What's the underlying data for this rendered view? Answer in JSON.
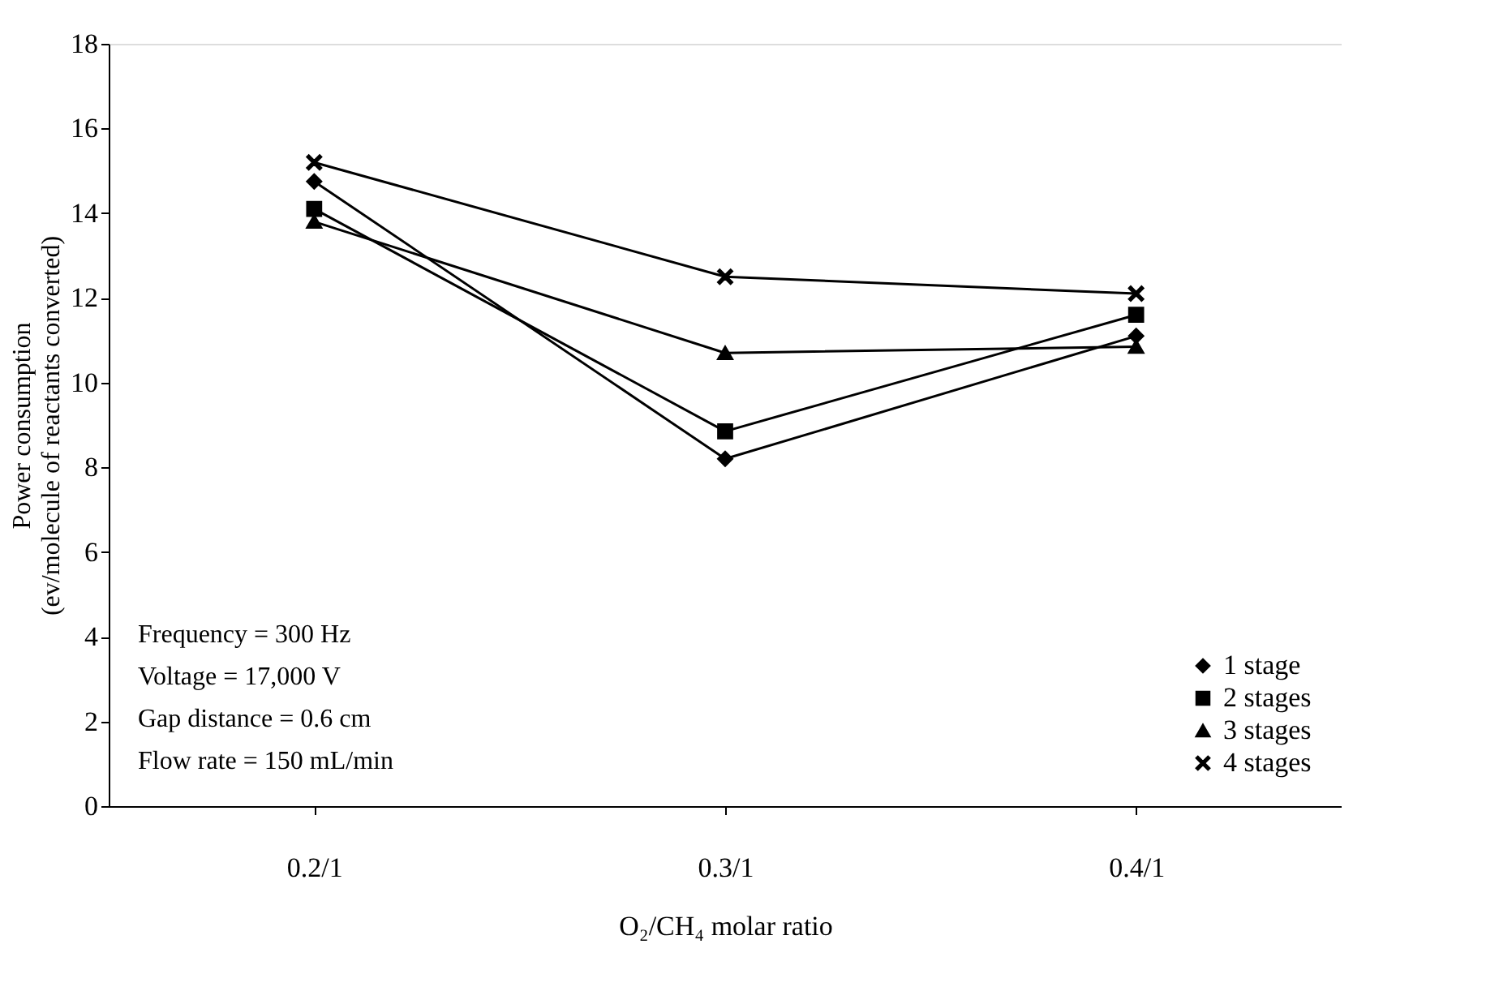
{
  "chart_data": {
    "type": "line",
    "xlabel": "O₂/CH₄ molar ratio",
    "ylabel": "Power consumption\n(ev/molecule of reactants converted)",
    "categories": [
      "0.2/1",
      "0.3/1",
      "0.4/1"
    ],
    "series": [
      {
        "name": "1 stage",
        "color": "#000000",
        "marker": "diamond",
        "values": [
          14.75,
          8.2,
          11.1
        ]
      },
      {
        "name": "2 stages",
        "color": "#000000",
        "marker": "square",
        "values": [
          14.1,
          8.85,
          11.6
        ]
      },
      {
        "name": "3 stages",
        "color": "#000000",
        "marker": "triangle",
        "values": [
          13.8,
          10.7,
          10.85
        ]
      },
      {
        "name": "4 stages",
        "color": "#000000",
        "marker": "cross",
        "values": [
          15.2,
          12.5,
          12.1
        ]
      }
    ],
    "ylim": [
      0,
      18
    ],
    "yticks": [
      0,
      2,
      4,
      6,
      8,
      10,
      12,
      14,
      16,
      18
    ],
    "grid": false,
    "legend": "bottom right",
    "line_style": "solid",
    "annotations": [
      "Frequency      = 300 Hz",
      "Voltage          = 17,000 V",
      "Gap distance  = 0.6 cm",
      "Flow rate       = 150 mL/min"
    ]
  }
}
